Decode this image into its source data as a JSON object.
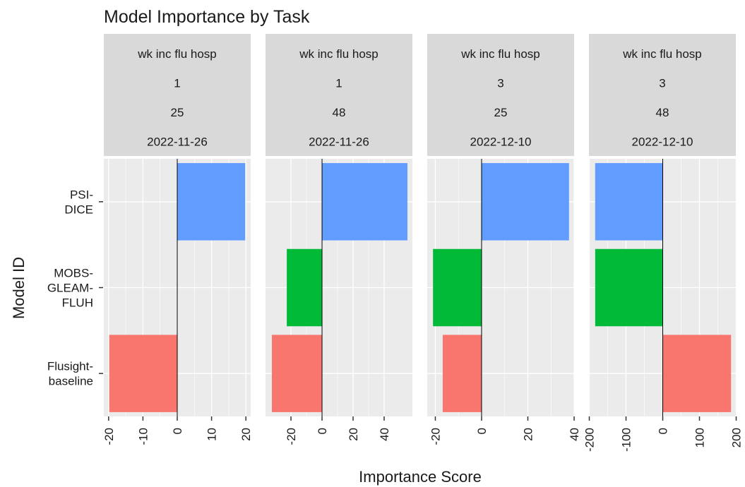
{
  "chart_data": {
    "type": "bar",
    "title": "Model Importance by Task",
    "xlabel": "Importance Score",
    "ylabel": "Model ID",
    "categories": [
      "PSI-DICE",
      "MOBS-GLEAM-FLUH",
      "Flusight-baseline"
    ],
    "colors": [
      "#619CFF",
      "#00BA38",
      "#F8766D"
    ],
    "panels": [
      {
        "strip": [
          "wk inc flu hosp",
          "1",
          "25",
          "2022-11-26"
        ],
        "values": [
          19.8,
          null,
          -19.8
        ],
        "xlim": [
          -21.4,
          21.4
        ],
        "xticks": [
          -20,
          -10,
          0,
          10,
          20
        ]
      },
      {
        "strip": [
          "wk inc flu hosp",
          "1",
          "48",
          "2022-11-26"
        ],
        "values": [
          55,
          -22.7,
          -32.3
        ],
        "xlim": [
          -36.4,
          58.2
        ],
        "xticks": [
          -20,
          0,
          20,
          40
        ]
      },
      {
        "strip": [
          "wk inc flu hosp",
          "3",
          "25",
          "2022-12-10"
        ],
        "values": [
          37.8,
          -21,
          -16.8
        ],
        "xlim": [
          -23.5,
          40
        ],
        "xticks": [
          -20,
          0,
          20,
          40
        ]
      },
      {
        "strip": [
          "wk inc flu hosp",
          "3",
          "48",
          "2022-12-10"
        ],
        "values": [
          -184,
          -184,
          186
        ],
        "xlim": [
          -201,
          199
        ],
        "xticks": [
          -200,
          -100,
          0,
          100,
          200
        ]
      }
    ]
  }
}
